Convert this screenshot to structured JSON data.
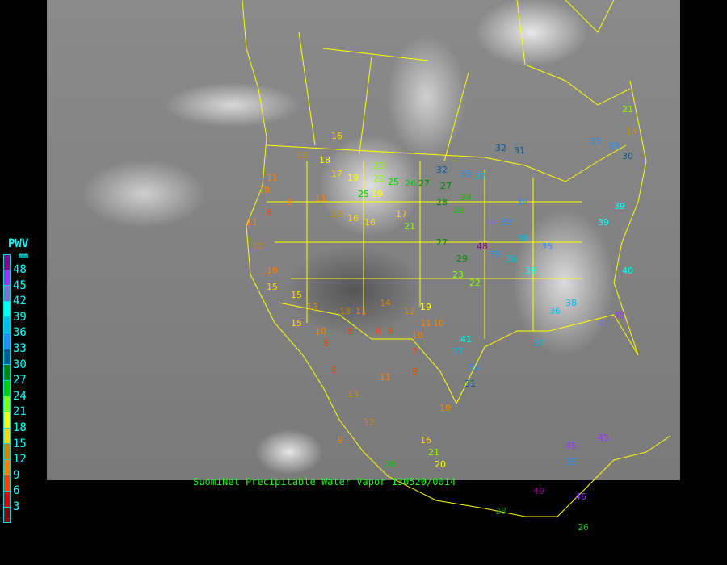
{
  "caption": "SuomiNet Precipitable Water Vapor 130520/0014",
  "legend": {
    "title": "PWV",
    "unit": "mm",
    "labels": [
      "48",
      "45",
      "42",
      "39",
      "36",
      "33",
      "30",
      "27",
      "24",
      "21",
      "18",
      "15",
      "12",
      "9",
      "6",
      "3"
    ],
    "colors": [
      "#8b008b",
      "#9933ff",
      "#8070d0",
      "#00ffff",
      "#00bbee",
      "#1e90ff",
      "#005a9a",
      "#008800",
      "#00cc00",
      "#80ff00",
      "#ffff00",
      "#ffd700",
      "#cc8800",
      "#ff8000",
      "#ff4000",
      "#dd0000",
      "#880000"
    ]
  },
  "map": {
    "background": "grayscale infrared satellite",
    "border_color": "#ffff00"
  },
  "stations": [
    16,
    13,
    18,
    17,
    19,
    22,
    25,
    26,
    27,
    32,
    31,
    32,
    35,
    37,
    33,
    33,
    30,
    14,
    21,
    10,
    11,
    11,
    9,
    6,
    11,
    13,
    12,
    10,
    15,
    16,
    16,
    19,
    17,
    21,
    27,
    28,
    26,
    25,
    23,
    24,
    27,
    29,
    23,
    22,
    48,
    35,
    36,
    38,
    39,
    35,
    33,
    34,
    41,
    44,
    45,
    43,
    38,
    36,
    37,
    39,
    40,
    39,
    37,
    34,
    31,
    15,
    10,
    13,
    11,
    8,
    6,
    8,
    10,
    7,
    14,
    12,
    11,
    19,
    21,
    20,
    16,
    26,
    28,
    26,
    49,
    46,
    45,
    45,
    35,
    10,
    6,
    11,
    13,
    12,
    9,
    8,
    15,
    13,
    8,
    10
  ]
}
